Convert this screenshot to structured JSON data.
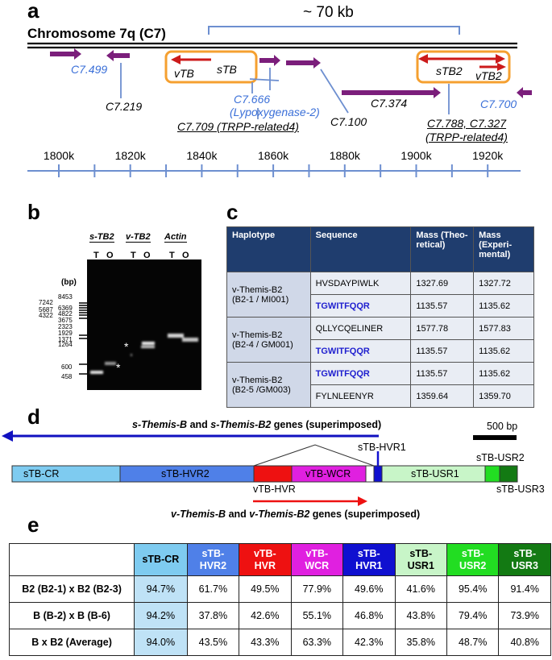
{
  "panel_a": {
    "label": "a",
    "span_label": "~ 70 kb",
    "chromosome_title": "Chromosome 7q (C7)",
    "genes": {
      "c7_499": "C7.499",
      "c7_219": "C7.219",
      "vtb": "vTB",
      "stb": "sTB",
      "c7_666": "C7.666",
      "lypox": "(Lypoxygenase-2)",
      "c7_709": "C7.709 (TRPP-related4)",
      "c7_100": "C7.100",
      "c7_374": "C7.374",
      "stb2": "sTB2",
      "vtb2": "vTB2",
      "c7_700": "C7.700",
      "c7_788_a": "C7.788, C7.327",
      "c7_788_b": "(TRPP-related4)"
    },
    "axis_ticks": [
      "1800k",
      "1820k",
      "1840k",
      "1860k",
      "1880k",
      "1900k",
      "1920k"
    ]
  },
  "panel_b": {
    "label": "b",
    "lanes": [
      "s-TB2",
      "v-TB2",
      "Actin"
    ],
    "lane_letters": [
      "T",
      "O",
      "T",
      "O",
      "T",
      "O"
    ],
    "unit": "(bp)",
    "ladder": [
      "8453",
      "7242",
      "6369",
      "5687",
      "4822",
      "4322",
      "3675",
      "2323",
      "1929",
      "1371",
      "1264",
      "600",
      "458"
    ],
    "marker": "*"
  },
  "panel_c": {
    "label": "c",
    "headers": [
      "Haplotype",
      "Sequence",
      "Mass (Theo-retical)",
      "Mass (Experi-mental)"
    ],
    "groups": [
      {
        "haplotype_a": "v-Themis-B2",
        "haplotype_b": "(B2-1 / MI001)",
        "rows": [
          {
            "sequence": "HVSDAYPIWLK",
            "theo": "1327.69",
            "exp": "1327.72",
            "shared": false
          },
          {
            "sequence": "TGWITFQQR",
            "theo": "1135.57",
            "exp": "1135.62",
            "shared": true
          }
        ]
      },
      {
        "haplotype_a": "v-Themis-B2",
        "haplotype_b": "(B2-4 / GM001)",
        "rows": [
          {
            "sequence": "QLLYCQELINER",
            "theo": "1577.78",
            "exp": "1577.83",
            "shared": false
          },
          {
            "sequence": "TGWITFQQR",
            "theo": "1135.57",
            "exp": "1135.62",
            "shared": true
          }
        ]
      },
      {
        "haplotype_a": "v-Themis-B2",
        "haplotype_b": "(B2-5 /GM003)",
        "rows": [
          {
            "sequence": "TGWITFQQR",
            "theo": "1135.57",
            "exp": "1135.62",
            "shared": true
          },
          {
            "sequence": "FYLNLEENYR",
            "theo": "1359.64",
            "exp": "1359.70",
            "shared": false
          }
        ]
      }
    ]
  },
  "panel_d": {
    "label": "d",
    "s_gene_italic": "s-Themis-B",
    "s_gene_and": "and",
    "s_gene_italic2": "s-Themis-B2",
    "s_gene_rest": "genes (superimposed)",
    "v_gene_italic": "v-Themis-B",
    "v_gene_and": "and",
    "v_gene_italic2": "v-Themis-B2",
    "v_gene_rest": "genes (superimposed)",
    "scale": "500 bp",
    "segments": {
      "cr": "sTB-CR",
      "hvr2": "sTB-HVR2",
      "wcr": "vTB-WCR",
      "usr1": "sTB-USR1",
      "hvr1": "sTB-HVR1",
      "usr2": "sTB-USR2",
      "vhvr": "vTB-HVR",
      "usr3": "sTB-USR3"
    },
    "colors": {
      "cr": "#7ecbf0",
      "hvr2": "#4f80e8",
      "vhvr": "#ee1111",
      "wcr": "#e020e0",
      "hvr1": "#1010d0",
      "usr1": "#c8f5c8",
      "usr2": "#22dd22",
      "usr3": "#137a13"
    }
  },
  "panel_e": {
    "label": "e",
    "columns": [
      {
        "a": "sTB-CR",
        "b": ""
      },
      {
        "a": "sTB-",
        "b": "HVR2"
      },
      {
        "a": "vTB-",
        "b": "HVR"
      },
      {
        "a": "vTB-",
        "b": "WCR"
      },
      {
        "a": "sTB-",
        "b": "HVR1"
      },
      {
        "a": "sTB-",
        "b": "USR1"
      },
      {
        "a": "sTB-",
        "b": "USR2"
      },
      {
        "a": "sTB-",
        "b": "USR3"
      }
    ],
    "rows": [
      {
        "label": "B2 (B2-1) x B2 (B2-3)",
        "values": [
          "94.7%",
          "61.7%",
          "49.5%",
          "77.9%",
          "49.6%",
          "41.6%",
          "95.4%",
          "91.4%"
        ]
      },
      {
        "label": "B (B-2) x B (B-6)",
        "values": [
          "94.2%",
          "37.8%",
          "42.6%",
          "55.1%",
          "46.8%",
          "43.8%",
          "79.4%",
          "73.9%"
        ]
      },
      {
        "label": "B x B2 (Average)",
        "values": [
          "94.0%",
          "43.5%",
          "43.3%",
          "63.3%",
          "42.3%",
          "35.8%",
          "48.7%",
          "40.8%"
        ]
      }
    ]
  }
}
